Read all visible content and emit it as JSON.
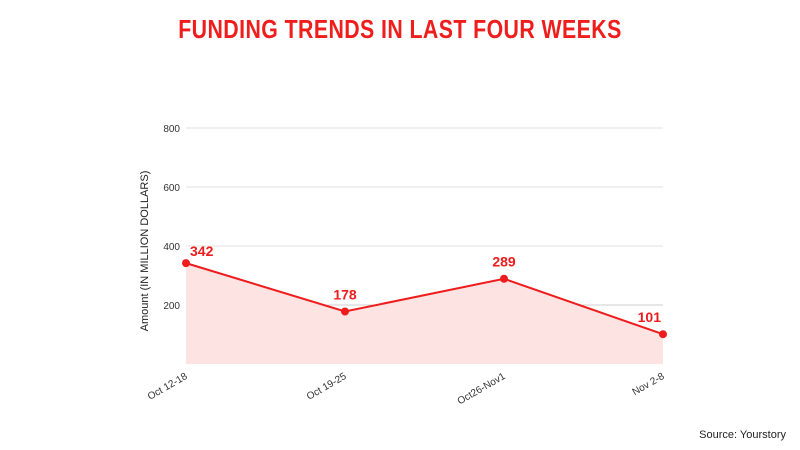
{
  "chart_data": {
    "type": "area",
    "title": "FUNDING TRENDS IN LAST FOUR WEEKS",
    "xlabel": "",
    "ylabel": "Amount (IN MILLION DOLLARS)",
    "categories": [
      "Oct 12-18",
      "Oct 19-25",
      "Oct26-Nov1",
      "Nov 2-8"
    ],
    "series": [
      {
        "name": "Funding",
        "values": [
          342,
          178,
          289,
          101
        ]
      }
    ],
    "data_labels": [
      "342",
      "178",
      "289",
      "101"
    ],
    "ylim": [
      0,
      800
    ],
    "yticks": [
      200,
      400,
      600,
      800
    ],
    "ytick_labels": [
      "200",
      "400",
      "600",
      "800"
    ],
    "grid": true,
    "legend": "none",
    "colors": {
      "line": "#ee1c1c",
      "fill": "#fde3e2",
      "grid": "#e2e2e2"
    }
  },
  "source": "Source: Yourstory"
}
